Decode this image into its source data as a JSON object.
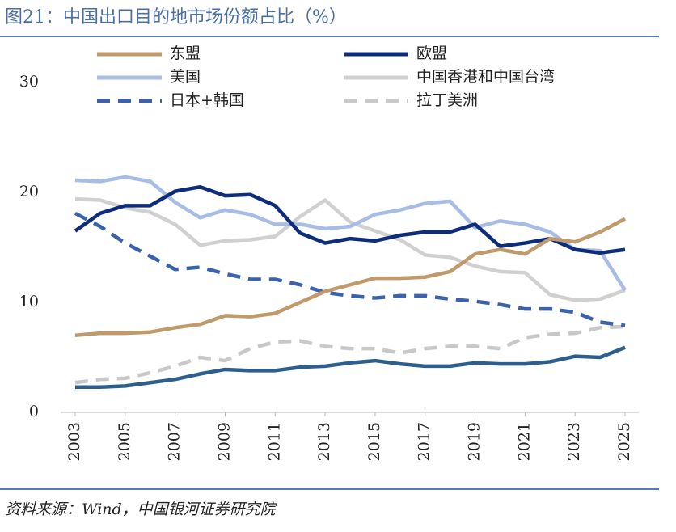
{
  "chart_data": {
    "type": "line",
    "title": "图21：中国出口目的地市场份额占比（%）",
    "source": "资料来源：Wind，中国银河证券研究院",
    "x": [
      2003,
      2004,
      2005,
      2006,
      2007,
      2008,
      2009,
      2010,
      2011,
      2012,
      2013,
      2014,
      2015,
      2016,
      2017,
      2018,
      2019,
      2020,
      2021,
      2022,
      2023,
      2024,
      2025
    ],
    "xlim": [
      2003,
      2025
    ],
    "xticks": [
      2003,
      2005,
      2007,
      2009,
      2011,
      2013,
      2015,
      2017,
      2019,
      2021,
      2023,
      2025
    ],
    "ylim": [
      0,
      30
    ],
    "yticks": [
      0,
      10,
      20,
      30
    ],
    "grid": false,
    "series": [
      {
        "name": "东盟",
        "color": "#c09a6b",
        "dash": false,
        "values": [
          7.0,
          7.2,
          7.2,
          7.3,
          7.7,
          8.0,
          8.8,
          8.7,
          9.0,
          10.0,
          11.0,
          11.6,
          12.2,
          12.2,
          12.3,
          12.8,
          14.4,
          14.8,
          14.4,
          15.8,
          15.5,
          16.4,
          17.6
        ]
      },
      {
        "name": "欧盟",
        "color": "#0d2c7a",
        "dash": false,
        "values": [
          16.5,
          18.1,
          18.8,
          18.8,
          20.1,
          20.5,
          19.7,
          19.8,
          18.8,
          16.3,
          15.4,
          15.8,
          15.6,
          16.1,
          16.4,
          16.4,
          17.1,
          15.1,
          15.4,
          15.8,
          14.8,
          14.5,
          14.8
        ]
      },
      {
        "name": "美国",
        "color": "#a7bde6",
        "dash": false,
        "values": [
          21.1,
          21.0,
          21.4,
          21.0,
          19.1,
          17.7,
          18.4,
          18.0,
          17.1,
          17.1,
          16.7,
          16.9,
          18.0,
          18.4,
          19.0,
          19.2,
          16.8,
          17.4,
          17.1,
          16.4,
          14.8,
          14.7,
          11.1
        ]
      },
      {
        "name": "中国香港和中国台湾",
        "color": "#d0d0d0",
        "dash": false,
        "values": [
          19.4,
          19.3,
          18.6,
          18.2,
          17.1,
          15.2,
          15.6,
          15.7,
          16.0,
          17.8,
          19.3,
          17.3,
          16.5,
          15.7,
          14.3,
          14.1,
          13.3,
          12.8,
          12.7,
          10.7,
          10.2,
          10.3,
          11.1
        ]
      },
      {
        "name": "日本+韩国",
        "color": "#3b62ad",
        "dash": true,
        "values": [
          18.1,
          16.9,
          15.4,
          14.2,
          13.0,
          13.2,
          12.6,
          12.1,
          12.1,
          11.6,
          10.9,
          10.6,
          10.4,
          10.6,
          10.6,
          10.3,
          10.1,
          9.8,
          9.4,
          9.4,
          9.1,
          8.2,
          7.9
        ]
      },
      {
        "name": "拉丁美洲",
        "color": "#c8c8c8",
        "dash": true,
        "values": [
          2.7,
          3.0,
          3.1,
          3.6,
          4.2,
          5.0,
          4.7,
          5.8,
          6.4,
          6.5,
          6.0,
          5.8,
          5.8,
          5.4,
          5.8,
          6.0,
          6.0,
          5.8,
          6.8,
          7.1,
          7.2,
          7.7,
          7.8
        ]
      },
      {
        "color": "#2d5f8e",
        "dash": false,
        "values": [
          2.3,
          2.3,
          2.4,
          2.7,
          3.0,
          3.5,
          3.9,
          3.8,
          3.8,
          4.1,
          4.2,
          4.5,
          4.7,
          4.4,
          4.2,
          4.2,
          4.5,
          4.4,
          4.4,
          4.6,
          5.1,
          5.0,
          5.9
        ]
      }
    ]
  }
}
